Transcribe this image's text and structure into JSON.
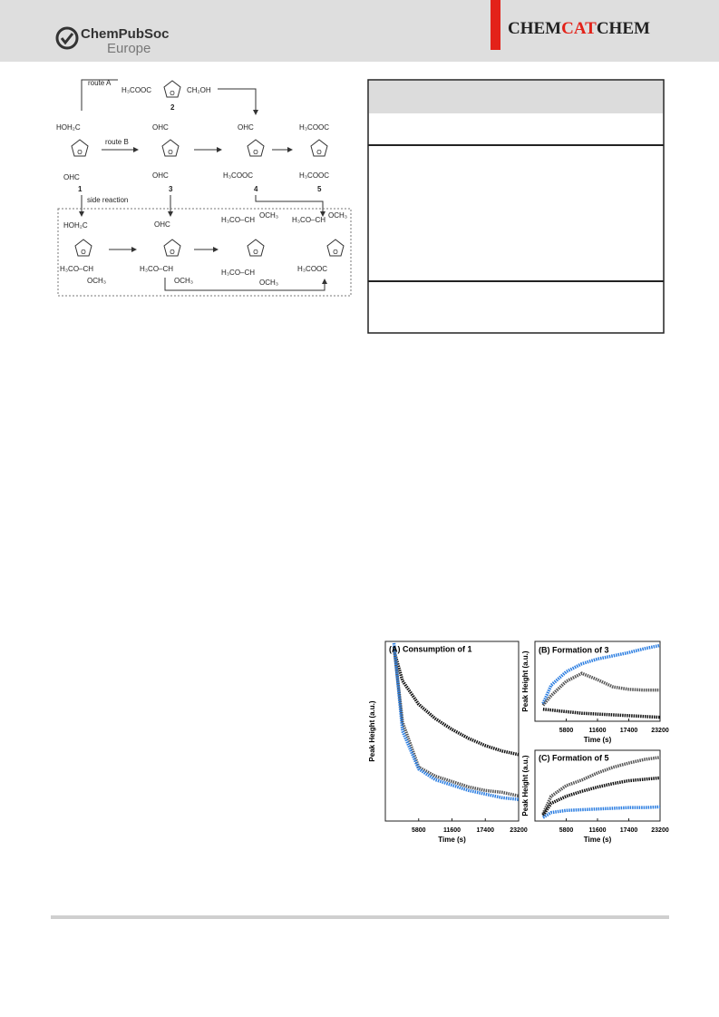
{
  "header": {
    "publisher": "ChemPubSoc",
    "publisher_sub": "Europe",
    "journal": [
      "CHEM",
      "CAT",
      "CHEM"
    ]
  },
  "scheme": {
    "texts": [
      "route A",
      "H₃COOC",
      "CH₂OH",
      "2",
      "HOH₂C",
      "route B",
      "OHC",
      "1",
      "OHC",
      "OHC",
      "3",
      "OHC",
      "H₃COOC",
      "4",
      "H₃COOC",
      "H₃COOC",
      "5",
      "side reaction",
      "HOH₂C",
      "H₃CO–CH",
      "OCH₃",
      "OHC",
      "H₃CO–CH",
      "OCH₃",
      "H₃CO–CH",
      "OCH₃",
      "H₃CO–CH",
      "OCH₃",
      "H₃CO–CH",
      "OCH₃",
      "H₃COOC"
    ]
  },
  "chart_data": [
    {
      "type": "line",
      "title": "(A) Consumption of 1",
      "x_label": "Time (s)",
      "y_label": "Peak Height (a.u.)",
      "xlim": [
        0,
        23200
      ],
      "ylim": [
        0,
        100
      ],
      "xticks": [
        5800,
        11600,
        17400,
        23200
      ],
      "x": [
        1500,
        3000,
        5800,
        8700,
        11600,
        14500,
        17400,
        20300,
        23200
      ],
      "series": [
        {
          "color": "#111111",
          "values": [
            95,
            78,
            65,
            57,
            51,
            46,
            42,
            39,
            37
          ]
        },
        {
          "color": "#555555",
          "values": [
            97,
            55,
            30,
            25,
            22,
            19,
            17,
            16,
            14
          ]
        },
        {
          "color": "#2a7de1",
          "values": [
            99,
            50,
            29,
            23,
            20,
            17,
            15,
            13,
            12
          ]
        }
      ]
    },
    {
      "type": "line",
      "title": "(B) Formation of 3",
      "x_label": "Time (s)",
      "y_label": "Peak Height (a.u.)",
      "xlim": [
        0,
        23200
      ],
      "ylim": [
        0,
        100
      ],
      "xticks": [
        5800,
        11600,
        17400,
        23200
      ],
      "x": [
        1500,
        3000,
        5800,
        8700,
        11600,
        14500,
        17400,
        20300,
        23200
      ],
      "series": [
        {
          "color": "#2a7de1",
          "values": [
            22,
            45,
            62,
            72,
            78,
            82,
            86,
            91,
            95
          ]
        },
        {
          "color": "#555555",
          "values": [
            20,
            32,
            50,
            60,
            52,
            43,
            40,
            39,
            39
          ]
        },
        {
          "color": "#111111",
          "values": [
            15,
            14,
            12,
            10,
            9,
            8,
            7,
            6,
            5
          ]
        }
      ]
    },
    {
      "type": "line",
      "title": "(C) Formation of 5",
      "x_label": "Time (s)",
      "y_label": "Peak Height (a.u.)",
      "xlim": [
        0,
        23200
      ],
      "ylim": [
        0,
        100
      ],
      "xticks": [
        5800,
        11600,
        17400,
        23200
      ],
      "x": [
        1500,
        3000,
        5800,
        8700,
        11600,
        14500,
        17400,
        20300,
        23200
      ],
      "series": [
        {
          "color": "#555555",
          "values": [
            10,
            35,
            50,
            58,
            68,
            76,
            82,
            87,
            90
          ]
        },
        {
          "color": "#111111",
          "values": [
            8,
            25,
            35,
            42,
            48,
            53,
            57,
            59,
            61
          ]
        },
        {
          "color": "#2a7de1",
          "values": [
            5,
            12,
            15,
            16,
            17,
            18,
            19,
            19,
            20
          ]
        }
      ]
    }
  ]
}
